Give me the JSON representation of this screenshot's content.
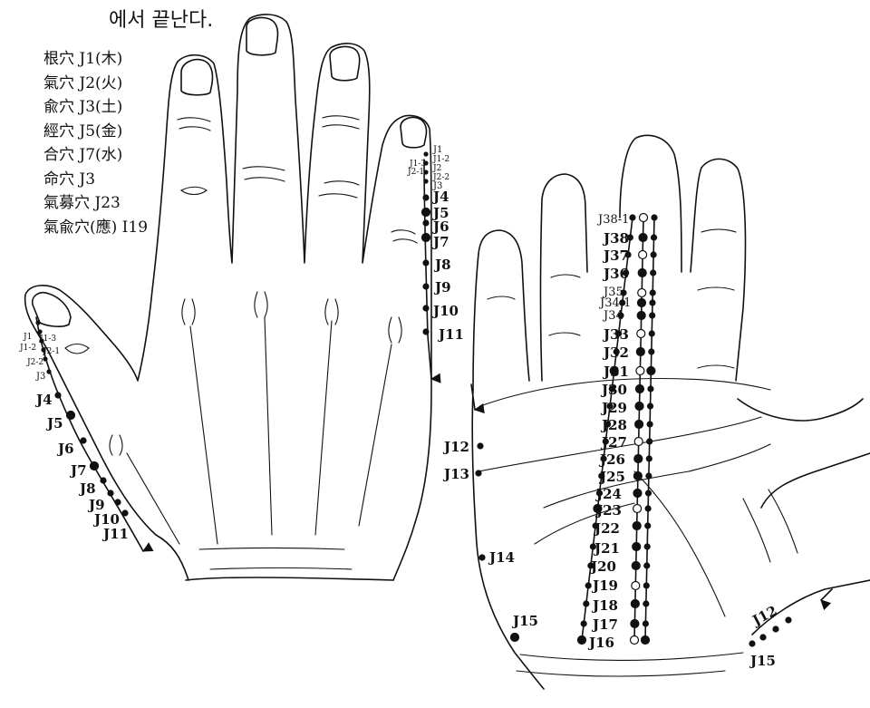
{
  "caption": "에서 끝난다.",
  "legend": [
    "根穴 J1(木)",
    "氣穴 J2(火)",
    "兪穴 J3(土)",
    "經穴 J5(金)",
    "合穴 J7(水)",
    "命穴 J3",
    "氣募穴 J23",
    "氣兪穴(應) I19"
  ],
  "back_hand": {
    "pinky_small": [
      "J1",
      "J1-2",
      "J1-3",
      "J2",
      "J2-1",
      "J2-2",
      "J3"
    ],
    "pinky_main": [
      "J4",
      "J5",
      "J6",
      "J7",
      "J8",
      "J9",
      "J10",
      "J11"
    ],
    "thumb_small": [
      "J1",
      "J1-3",
      "J1-2",
      "J2-1",
      "J2-2",
      "J3"
    ],
    "thumb_main": [
      "J4",
      "J5",
      "J6",
      "J7",
      "J8",
      "J9",
      "J10",
      "J11"
    ]
  },
  "palm": {
    "meridian_labels": [
      "J38-1",
      "J38",
      "J37",
      "J36",
      "J35",
      "J34-1",
      "J34",
      "J33",
      "J32",
      "J31",
      "J30",
      "J29",
      "J28",
      "J27",
      "J26",
      "J25",
      "J24",
      "J23",
      "J22",
      "J21",
      "J20",
      "J19",
      "J18",
      "J17",
      "J16"
    ],
    "edge_labels": [
      "J12",
      "J13",
      "J14",
      "J15"
    ],
    "thumb_labels": [
      "J12",
      "J15"
    ]
  }
}
